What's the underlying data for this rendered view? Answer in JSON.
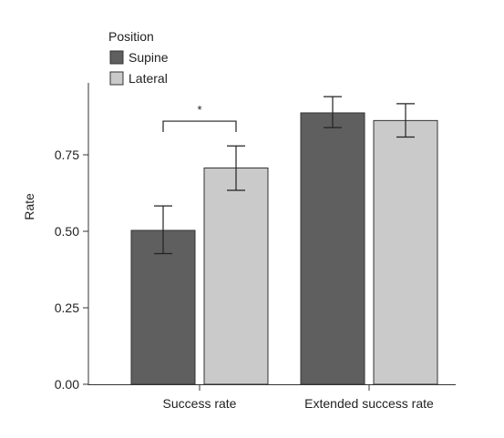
{
  "chart_data": {
    "type": "bar",
    "categories": [
      "Success rate",
      "Extended success rate"
    ],
    "series": [
      {
        "name": "Supine",
        "color": "#5f5f5f",
        "values": [
          0.503,
          0.887
        ],
        "error_low": [
          0.427,
          0.839
        ],
        "error_high": [
          0.583,
          0.94
        ]
      },
      {
        "name": "Lateral",
        "color": "#cacaca",
        "values": [
          0.707,
          0.862
        ],
        "error_low": [
          0.634,
          0.808
        ],
        "error_high": [
          0.779,
          0.917
        ]
      }
    ],
    "legend": {
      "title": "Position",
      "placement": "top-left"
    },
    "ylabel": "Rate",
    "xlabel": "",
    "ylim": [
      0,
      1.0
    ],
    "yticks": [
      0,
      0.25,
      0.5,
      0.75
    ],
    "ytick_labels": [
      "0.00",
      "0.25",
      "0.50",
      "0.75"
    ],
    "grid": false,
    "annotations": [
      {
        "type": "significance-bracket",
        "category": "Success rate",
        "between": [
          "Supine",
          "Lateral"
        ],
        "label": "*",
        "y": 0.86
      }
    ]
  }
}
